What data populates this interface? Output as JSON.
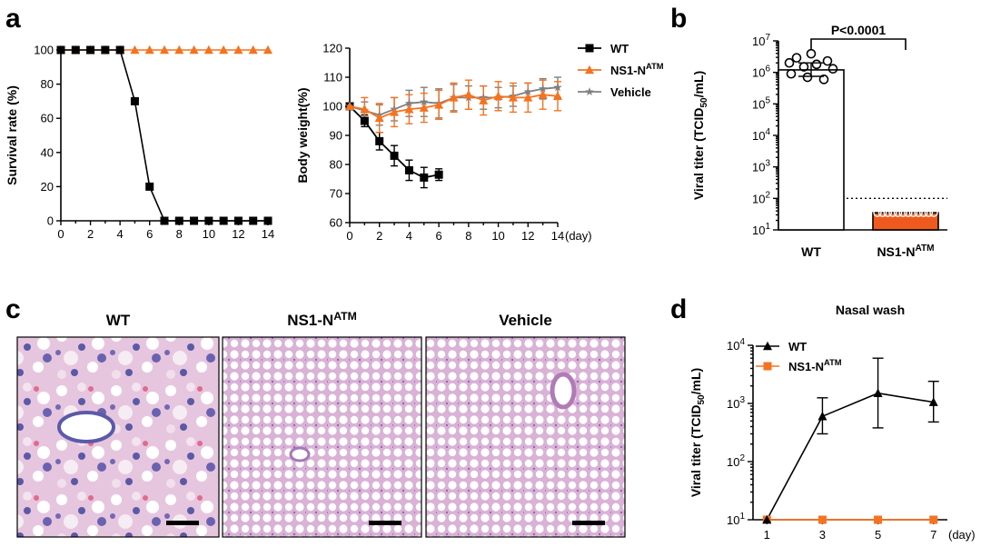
{
  "colors": {
    "wt": "#000000",
    "ns1": "#f47321",
    "vehicle": "#7f7f7f",
    "ns1_bar": "#ee5a1e"
  },
  "panels": {
    "a": {
      "letter": "a"
    },
    "b": {
      "letter": "b"
    },
    "c": {
      "letter": "c"
    },
    "d": {
      "letter": "d"
    }
  },
  "chart_data": [
    {
      "id": "a-survival",
      "type": "line",
      "ylabel": "Survival rate (%)",
      "xlim": [
        0,
        14
      ],
      "ylim": [
        0,
        100
      ],
      "xticks": [
        0,
        2,
        4,
        6,
        8,
        10,
        12,
        14
      ],
      "yticks": [
        0,
        20,
        40,
        60,
        80,
        100
      ],
      "series": [
        {
          "key": "wt",
          "marker": "square",
          "x": [
            0,
            1,
            2,
            3,
            4,
            5,
            6,
            7,
            8,
            9,
            10,
            11,
            12,
            13,
            14
          ],
          "y": [
            100,
            100,
            100,
            100,
            100,
            70,
            20,
            0,
            0,
            0,
            0,
            0,
            0,
            0,
            0
          ]
        },
        {
          "key": "ns1",
          "marker": "triangle",
          "x": [
            0,
            1,
            2,
            3,
            4,
            5,
            6,
            7,
            8,
            9,
            10,
            11,
            12,
            13,
            14
          ],
          "y": [
            100,
            100,
            100,
            100,
            100,
            100,
            100,
            100,
            100,
            100,
            100,
            100,
            100,
            100,
            100
          ]
        }
      ]
    },
    {
      "id": "a-weight",
      "type": "line",
      "ylabel": "Body weight(%)",
      "xunit": "(day)",
      "xlim": [
        0,
        14
      ],
      "ylim": [
        60,
        120
      ],
      "xticks": [
        0,
        2,
        4,
        6,
        8,
        10,
        12,
        14
      ],
      "yticks": [
        60,
        70,
        80,
        90,
        100,
        110,
        120
      ],
      "legend": [
        {
          "key": "wt",
          "marker": "square",
          "label": "WT",
          "sup": ""
        },
        {
          "key": "ns1",
          "marker": "triangle",
          "label": "NS1-N",
          "sup": "ATM"
        },
        {
          "key": "vehicle",
          "marker": "star",
          "label": "Vehicle",
          "sup": ""
        }
      ],
      "series": [
        {
          "key": "wt",
          "marker": "square",
          "x": [
            0,
            1,
            2,
            3,
            4,
            5,
            6
          ],
          "y": [
            100,
            95,
            88,
            83,
            78,
            75.5,
            76.5
          ],
          "err": [
            0.5,
            2,
            3,
            3.5,
            3.5,
            3.5,
            2
          ]
        },
        {
          "key": "vehicle",
          "marker": "star",
          "x": [
            0,
            1,
            2,
            3,
            4,
            5,
            6,
            7,
            8,
            9,
            10,
            11,
            12,
            13,
            14
          ],
          "y": [
            100,
            98.5,
            97,
            99,
            101,
            101.5,
            101,
            103,
            103,
            103,
            103,
            103.5,
            105,
            106,
            106.5
          ],
          "err": [
            0.5,
            3,
            3.5,
            4,
            4.5,
            5,
            5,
            4.5,
            4,
            4,
            3.5,
            3.5,
            3,
            3.5,
            3.5
          ]
        },
        {
          "key": "ns1",
          "marker": "triangle",
          "x": [
            0,
            1,
            2,
            3,
            4,
            5,
            6,
            7,
            8,
            9,
            10,
            11,
            12,
            13,
            14
          ],
          "y": [
            100,
            99,
            96,
            98,
            99,
            99.5,
            100.5,
            103,
            104,
            102,
            103.5,
            103,
            103,
            104,
            103.5
          ],
          "err": [
            0.5,
            4,
            5,
            5,
            5,
            5,
            5,
            5,
            5,
            5,
            5,
            5,
            5,
            5,
            5
          ]
        }
      ]
    },
    {
      "id": "b-titer",
      "type": "bar",
      "ylabel": "Viral titer (TCID",
      "ylabel_sub": "50",
      "ylabel_end": "/mL)",
      "ylog": true,
      "ylim_exp": [
        1,
        7
      ],
      "yticks_exp": [
        1,
        2,
        3,
        4,
        5,
        6,
        7
      ],
      "detection_limit": 100,
      "significance": "P<0.0001",
      "categories": [
        {
          "label": "WT",
          "sup": ""
        },
        {
          "label": "NS1-N",
          "sup": "ATM"
        }
      ],
      "bars": [
        {
          "key": "wt",
          "value": 1200000,
          "err_low": 750000,
          "err_high": 2000000,
          "fill": "none",
          "points": [
            3900000,
            2900000,
            2300000,
            2000000,
            1800000,
            1500000,
            1300000,
            900000,
            700000,
            600000
          ]
        },
        {
          "key": "ns1",
          "value": 35,
          "err_low": 35,
          "err_high": 35,
          "fill": "ns1_bar",
          "points": [
            35,
            35,
            35,
            35,
            35,
            35,
            35,
            35,
            35,
            35,
            35,
            35
          ]
        }
      ]
    },
    {
      "id": "d-nasal",
      "type": "line",
      "title": "Nasal wash",
      "ylabel": "Viral titer (TCID",
      "ylabel_sub": "50",
      "ylabel_end": "/mL)",
      "xunit": "(day)",
      "ylog": true,
      "ylim_exp": [
        1,
        4
      ],
      "yticks_exp": [
        1,
        2,
        3,
        4
      ],
      "xlim": [
        0.5,
        7.5
      ],
      "xticks": [
        1,
        3,
        5,
        7
      ],
      "legend": [
        {
          "key": "wt",
          "marker": "triangle",
          "label": "WT",
          "sup": ""
        },
        {
          "key": "ns1",
          "marker": "square",
          "label": "NS1-N",
          "sup": "ATM"
        }
      ],
      "series": [
        {
          "key": "wt",
          "marker": "triangle",
          "x": [
            1,
            3,
            5,
            7
          ],
          "y": [
            10,
            600,
            1500,
            1050
          ],
          "err_low": [
            10,
            300,
            380,
            480
          ],
          "err_high": [
            10,
            1250,
            6000,
            2400
          ]
        },
        {
          "key": "ns1",
          "marker": "square",
          "x": [
            1,
            3,
            5,
            7
          ],
          "y": [
            10,
            10,
            10,
            10
          ]
        }
      ]
    }
  ],
  "histology": {
    "panels": [
      {
        "key": "wt",
        "label": "WT",
        "sup": ""
      },
      {
        "key": "ns1",
        "label": "NS1-N",
        "sup": "ATM"
      },
      {
        "key": "vehicle",
        "label": "Vehicle",
        "sup": ""
      }
    ]
  }
}
